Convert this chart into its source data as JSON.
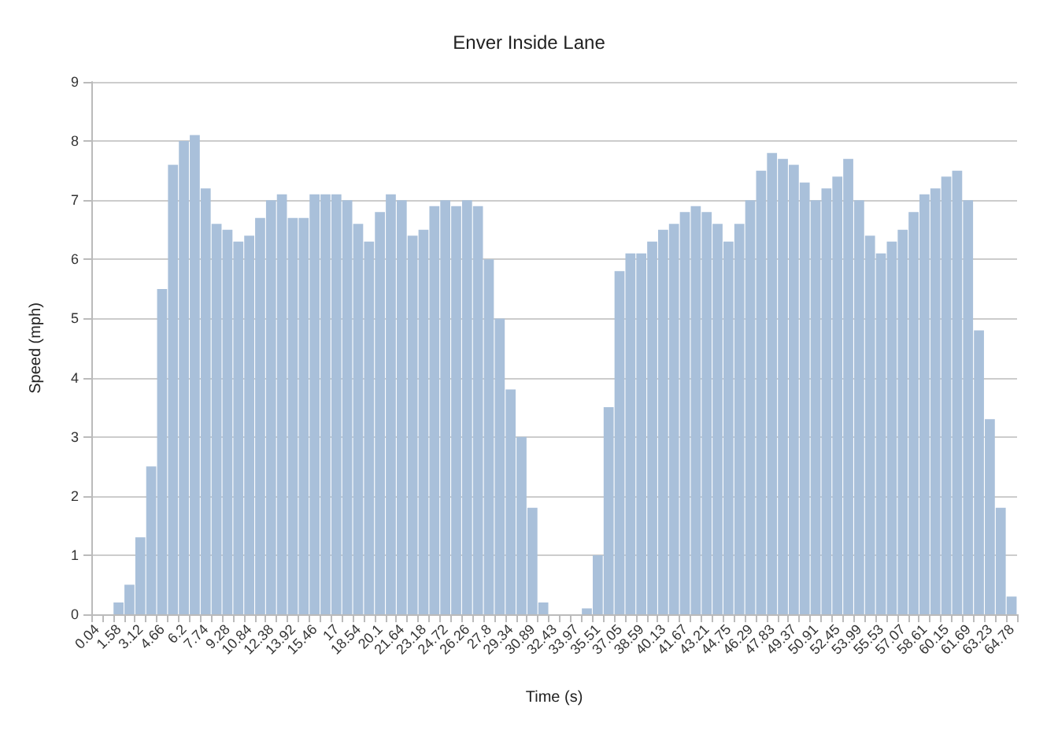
{
  "chart_data": {
    "type": "bar",
    "title": "Enver Inside Lane",
    "xlabel": "Time (s)",
    "ylabel": "Speed (mph)",
    "categories": [
      "0.04",
      null,
      "1.58",
      null,
      "3.12",
      null,
      "4.66",
      null,
      "6.2",
      null,
      "7.74",
      null,
      "9.28",
      null,
      "10.84",
      null,
      "12.38",
      null,
      "13.92",
      null,
      "15.46",
      null,
      "17",
      null,
      "18.54",
      null,
      "20.1",
      null,
      "21.64",
      null,
      "23.18",
      null,
      "24.72",
      null,
      "26.26",
      null,
      "27.8",
      null,
      "29.34",
      null,
      "30.89",
      null,
      "32.43",
      null,
      "33.97",
      null,
      "35.51",
      null,
      "37.05",
      null,
      "38.59",
      null,
      "40.13",
      null,
      "41.67",
      null,
      "43.21",
      null,
      "44.75",
      null,
      "46.29",
      null,
      "47.83",
      null,
      "49.37",
      null,
      "50.91",
      null,
      "52.45",
      null,
      "53.99",
      null,
      "55.53",
      null,
      "57.07",
      null,
      "58.61",
      null,
      "60.15",
      null,
      "61.69",
      null,
      "63.23",
      null,
      "64.78"
    ],
    "values": [
      0,
      0,
      0.2,
      0.5,
      1.3,
      2.5,
      5.5,
      7.6,
      8.0,
      8.1,
      7.2,
      6.6,
      6.5,
      6.3,
      6.4,
      6.7,
      7.0,
      7.1,
      6.7,
      6.7,
      7.1,
      7.1,
      7.1,
      7.0,
      6.6,
      6.3,
      6.8,
      7.1,
      7.0,
      6.4,
      6.5,
      6.9,
      7.0,
      6.9,
      7.0,
      6.9,
      6.0,
      5.0,
      3.8,
      3.0,
      1.8,
      0.2,
      0,
      0,
      0,
      0.1,
      1.0,
      3.5,
      5.8,
      6.1,
      6.1,
      6.3,
      6.5,
      6.6,
      6.8,
      6.9,
      6.8,
      6.6,
      6.3,
      6.6,
      7.0,
      7.5,
      7.8,
      7.7,
      7.6,
      7.3,
      7.0,
      7.2,
      7.4,
      7.7,
      7.0,
      6.4,
      6.1,
      6.3,
      6.5,
      6.8,
      7.1,
      7.2,
      7.4,
      7.5,
      7.0,
      4.8,
      3.3,
      1.8,
      0.3
    ],
    "color": "#a9c0da",
    "ylim": [
      0,
      9
    ],
    "yticks": [
      0,
      1,
      2,
      3,
      4,
      5,
      6,
      7,
      8,
      9
    ],
    "grid": "y"
  }
}
